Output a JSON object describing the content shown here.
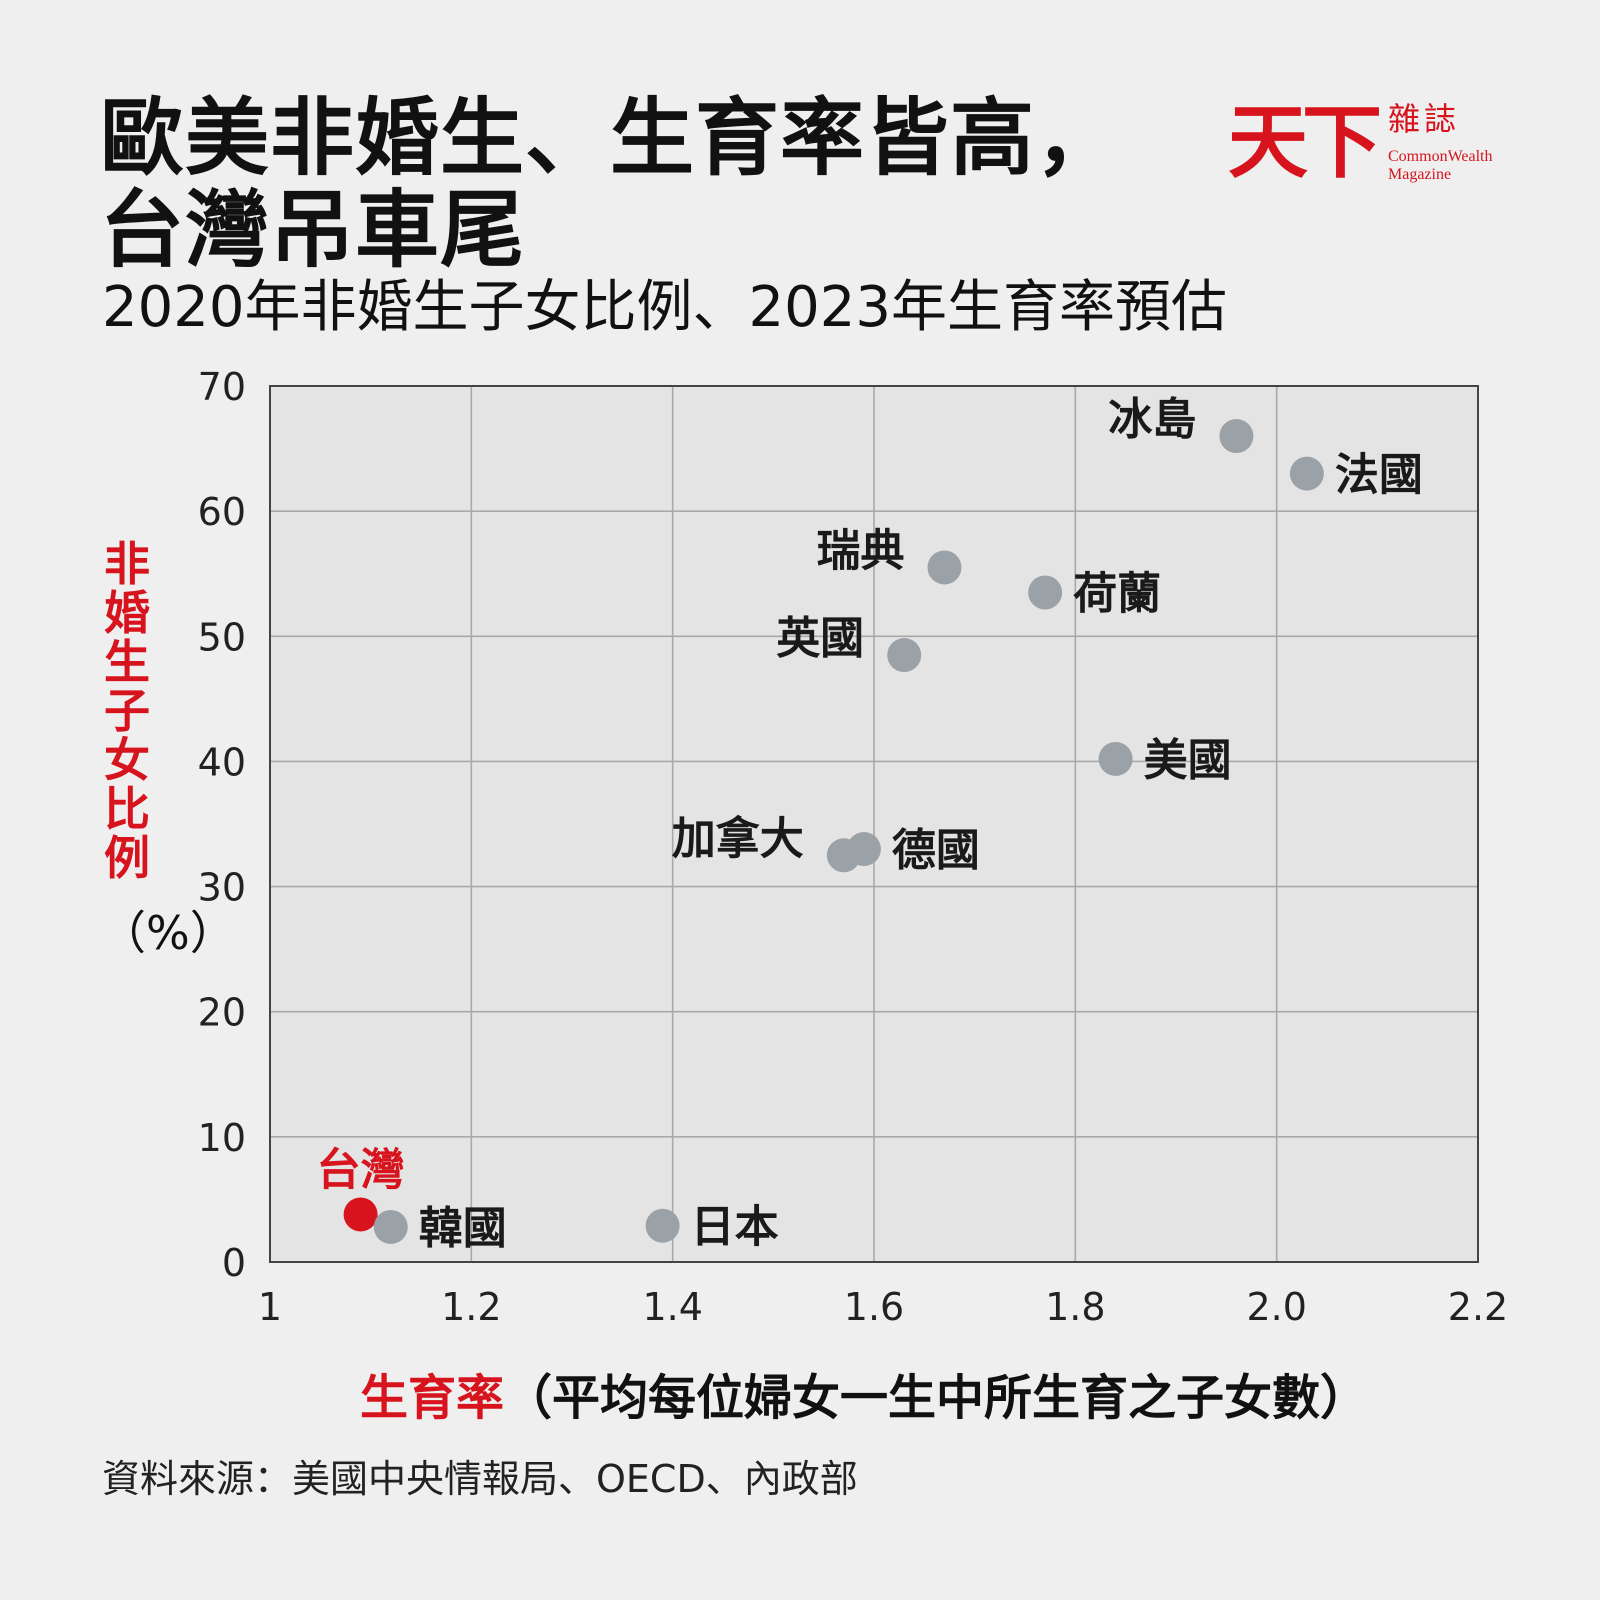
{
  "title": {
    "line1": "歐美非婚生、生育率皆高，",
    "line2": "台灣吊車尾"
  },
  "subtitle": "2020年非婚生子女比例、2023年生育率預估",
  "logo": {
    "main": "天下",
    "zh": "雜誌",
    "en_line1": "CommonWealth",
    "en_line2": "Magazine",
    "color": "#d7141d"
  },
  "source": "資料來源：美國中央情報局、OECD、內政部",
  "chart_data": {
    "type": "scatter",
    "xlabel_highlight": "生育率",
    "xlabel_rest": "（平均每位婦女一生中所生育之子女數）",
    "ylabel": "非婚生子女比例",
    "ylabel_unit": "（%）",
    "xlim": [
      1,
      2.2
    ],
    "ylim": [
      0,
      70
    ],
    "x_ticks": [
      "1",
      "1.2",
      "1.4",
      "1.6",
      "1.8",
      "2.0",
      "2.2"
    ],
    "x_tick_values": [
      1,
      1.2,
      1.4,
      1.6,
      1.8,
      2.0,
      2.2
    ],
    "y_ticks": [
      "0",
      "10",
      "20",
      "30",
      "40",
      "50",
      "60",
      "70"
    ],
    "y_tick_values": [
      0,
      10,
      20,
      30,
      40,
      50,
      60,
      70
    ],
    "grid": true,
    "point_color": "#9aa2a8",
    "highlight_color": "#d7141d",
    "points": [
      {
        "label": "冰島",
        "x": 1.96,
        "y": 66,
        "label_side": "left"
      },
      {
        "label": "法國",
        "x": 2.03,
        "y": 63,
        "label_side": "right"
      },
      {
        "label": "瑞典",
        "x": 1.67,
        "y": 55.5,
        "label_side": "left"
      },
      {
        "label": "荷蘭",
        "x": 1.77,
        "y": 53.5,
        "label_side": "right"
      },
      {
        "label": "英國",
        "x": 1.63,
        "y": 48.5,
        "label_side": "left"
      },
      {
        "label": "美國",
        "x": 1.84,
        "y": 40.2,
        "label_side": "right"
      },
      {
        "label": "加拿大",
        "x": 1.57,
        "y": 32.5,
        "label_side": "left"
      },
      {
        "label": "德國",
        "x": 1.59,
        "y": 33,
        "label_side": "right"
      },
      {
        "label": "台灣",
        "x": 1.09,
        "y": 3.8,
        "label_side": "top",
        "highlight": true
      },
      {
        "label": "韓國",
        "x": 1.12,
        "y": 2.8,
        "label_side": "right"
      },
      {
        "label": "日本",
        "x": 1.39,
        "y": 2.9,
        "label_side": "right"
      }
    ]
  }
}
